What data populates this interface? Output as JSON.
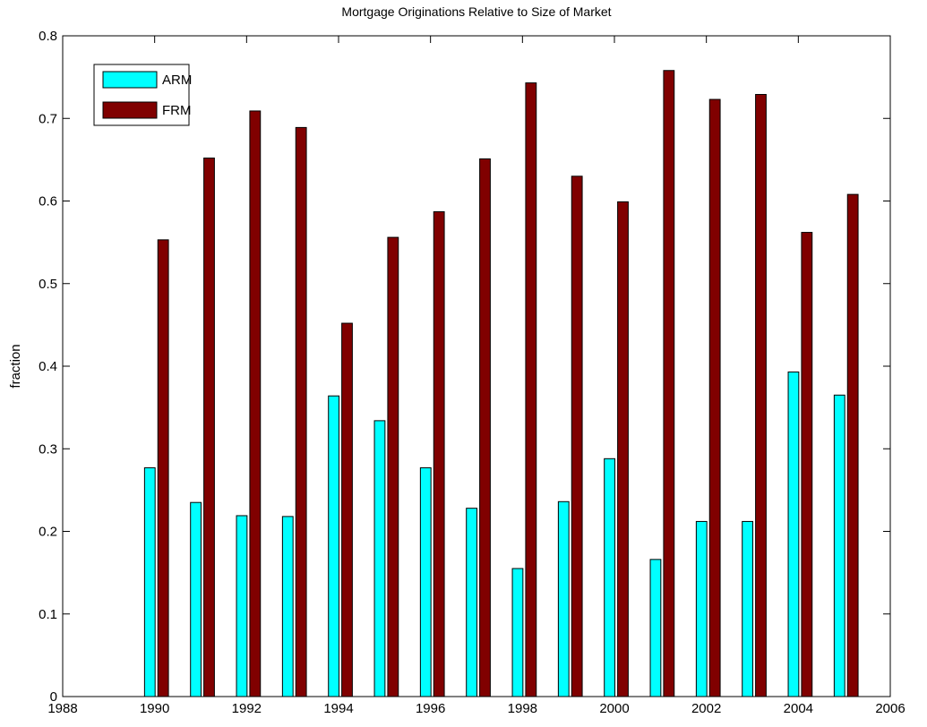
{
  "chart_data": {
    "type": "bar",
    "title": "Mortgage Originations Relative to Size of Market",
    "y_label": "fraction",
    "x": [
      1990,
      1991,
      1992,
      1993,
      1994,
      1995,
      1996,
      1997,
      1998,
      1999,
      2000,
      2001,
      2002,
      2003,
      2004,
      2005
    ],
    "series": [
      {
        "name": "ARM",
        "color": "#00ffff",
        "values": [
          0.277,
          0.235,
          0.219,
          0.218,
          0.364,
          0.334,
          0.277,
          0.228,
          0.155,
          0.236,
          0.288,
          0.166,
          0.212,
          0.212,
          0.393,
          0.365
        ]
      },
      {
        "name": "FRM",
        "color": "#800000",
        "values": [
          0.553,
          0.652,
          0.709,
          0.689,
          0.452,
          0.556,
          0.587,
          0.651,
          0.743,
          0.63,
          0.599,
          0.758,
          0.723,
          0.729,
          0.562,
          0.608
        ]
      }
    ],
    "xlim": [
      1988,
      2006
    ],
    "xticks": [
      1988,
      1990,
      1992,
      1994,
      1996,
      1998,
      2000,
      2002,
      2004,
      2006
    ],
    "ylim": [
      0,
      0.8
    ],
    "yticks": [
      0,
      0.1,
      0.2,
      0.3,
      0.4,
      0.5,
      0.6,
      0.7,
      0.8
    ],
    "grid": false,
    "legend": "upper left"
  }
}
